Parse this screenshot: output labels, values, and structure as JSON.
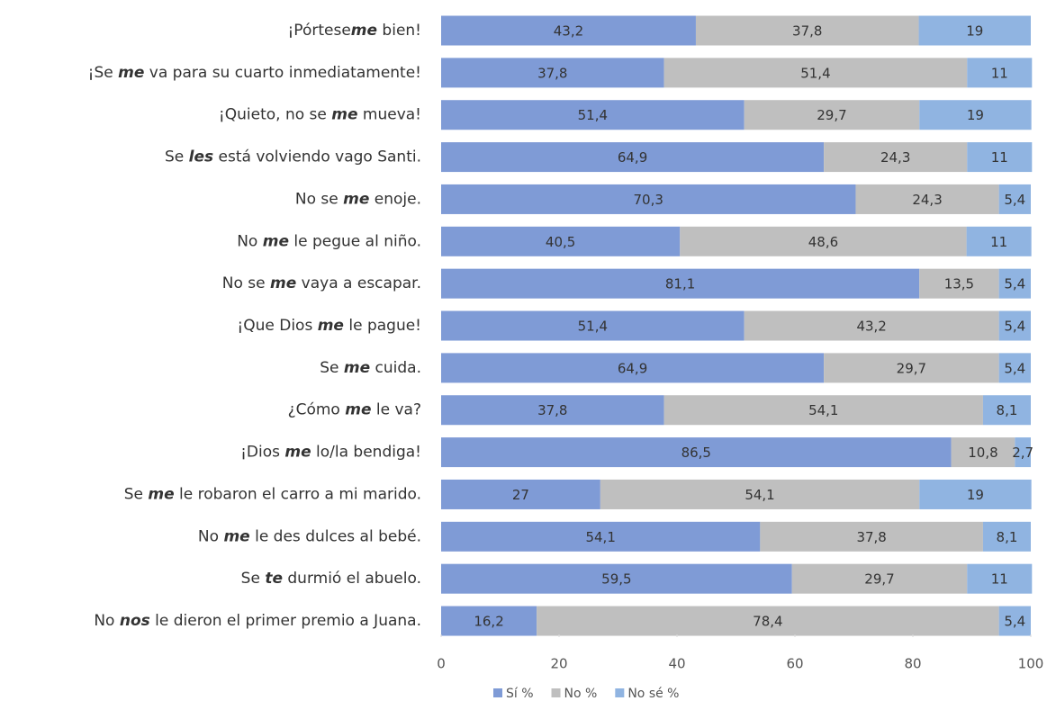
{
  "chart_data": {
    "type": "stacked_bar_horizontal",
    "categories": [
      [
        "¡Pórtese",
        "me",
        " bien!"
      ],
      [
        "¡Se ",
        "me",
        " va para su cuarto inmediatamente!"
      ],
      [
        "¡Quieto, no se ",
        "me",
        " mueva!"
      ],
      [
        "Se ",
        "les",
        " está volviendo vago Santi."
      ],
      [
        "No se ",
        "me",
        " enoje."
      ],
      [
        "No ",
        "me",
        " le pegue al niño."
      ],
      [
        "No se ",
        "me",
        " vaya a escapar."
      ],
      [
        "¡Que Dios ",
        "me",
        " le pague!"
      ],
      [
        "Se ",
        "me",
        " cuida."
      ],
      [
        "¿Cómo ",
        "me",
        " le va?"
      ],
      [
        "¡Dios ",
        "me",
        " lo/la bendiga!"
      ],
      [
        "Se ",
        "me",
        " le robaron el carro a mi marido."
      ],
      [
        "No ",
        "me",
        " le des dulces al bebé."
      ],
      [
        "Se ",
        "te",
        " durmió el abuelo."
      ],
      [
        "No ",
        "nos",
        " le dieron el primer premio a Juana."
      ]
    ],
    "series": [
      {
        "name": "Sí %",
        "color": "#7f9bd6",
        "values": [
          43.2,
          37.8,
          51.4,
          64.9,
          70.3,
          40.5,
          81.1,
          51.4,
          64.9,
          37.8,
          86.5,
          27,
          54.1,
          59.5,
          16.2
        ],
        "value_labels": [
          "43,2",
          "37,8",
          "51,4",
          "64,9",
          "70,3",
          "40,5",
          "81,1",
          "51,4",
          "64,9",
          "37,8",
          "86,5",
          "27",
          "54,1",
          "59,5",
          "16,2"
        ]
      },
      {
        "name": "No %",
        "color": "#bfbfbf",
        "values": [
          37.8,
          51.4,
          29.7,
          24.3,
          24.3,
          48.6,
          13.5,
          43.2,
          29.7,
          54.1,
          10.8,
          54.1,
          37.8,
          29.7,
          78.4
        ],
        "value_labels": [
          "37,8",
          "51,4",
          "29,7",
          "24,3",
          "24,3",
          "48,6",
          "13,5",
          "43,2",
          "29,7",
          "54,1",
          "10,8",
          "54,1",
          "37,8",
          "29,7",
          "78,4"
        ]
      },
      {
        "name": "No sé %",
        "color": "#90b4e1",
        "values": [
          19,
          11,
          19,
          11,
          5.4,
          11,
          5.4,
          5.4,
          5.4,
          8.1,
          2.7,
          19,
          8.1,
          11,
          5.4
        ],
        "value_labels": [
          "19",
          "11",
          "19",
          "11",
          "5,4",
          "11",
          "5,4",
          "5,4",
          "5,4",
          "8,1",
          "2,7",
          "19",
          "8,1",
          "11",
          "5,4"
        ]
      }
    ],
    "xlim": [
      0,
      100
    ],
    "xticks": [
      0,
      20,
      40,
      60,
      80,
      100
    ],
    "legend": "bottom"
  }
}
